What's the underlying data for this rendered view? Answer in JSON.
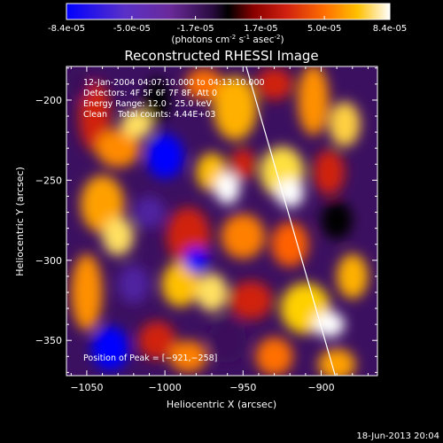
{
  "colorbar": {
    "tick_labels": [
      "-8.4e-05",
      "-5.0e-05",
      "-1.7e-05",
      "1.7e-05",
      "5.0e-05",
      "8.4e-05"
    ],
    "tick_values": [
      -8.4e-05,
      -5e-05,
      -1.7e-05,
      1.7e-05,
      5e-05,
      8.4e-05
    ],
    "range": [
      -8.4e-05,
      8.4e-05
    ],
    "units_main": "(photons cm",
    "units_sup1": "-2",
    "units_mid": " s",
    "units_sup2": "-1",
    "units_end": " asec",
    "units_sup3": "-2",
    "units_close": ")",
    "colors": [
      "#0000ff",
      "#6f2fb0",
      "#3a0f5a",
      "#000000",
      "#c01010",
      "#ff6a00",
      "#ffd000",
      "#ffffff"
    ]
  },
  "chart_data": {
    "type": "heatmap",
    "title": "Reconstructed RHESSI Image",
    "xlabel": "Heliocentric X (arcsec)",
    "ylabel": "Heliocentric Y (arcsec)",
    "xlim": [
      -1063,
      -864
    ],
    "ylim": [
      -372,
      -179
    ],
    "xticks": [
      -1050,
      -1000,
      -950,
      -900
    ],
    "xtick_labels": [
      "−1050",
      "−1000",
      "−950",
      "−900"
    ],
    "yticks": [
      -350,
      -300,
      -250,
      -200
    ],
    "ytick_labels": [
      "−350",
      "−300",
      "−250",
      "−200"
    ],
    "annotation_lines": [
      "12-Jan-2004 04:07:10.000 to 04:13:10.000",
      "Detectors: 4F 5F 6F 7F 8F, Att 0",
      "Energy Range: 12.0 - 25.0 keV",
      "Clean    Total counts: 4.44E+03"
    ],
    "peak_label": "Position of Peak = [−921,−258]",
    "peak_position": [
      -921,
      -258
    ],
    "limb_line": [
      [
        -948,
        -179
      ],
      [
        -891,
        -372
      ]
    ]
  },
  "timestamp": "18-Jun-2013 20:04"
}
